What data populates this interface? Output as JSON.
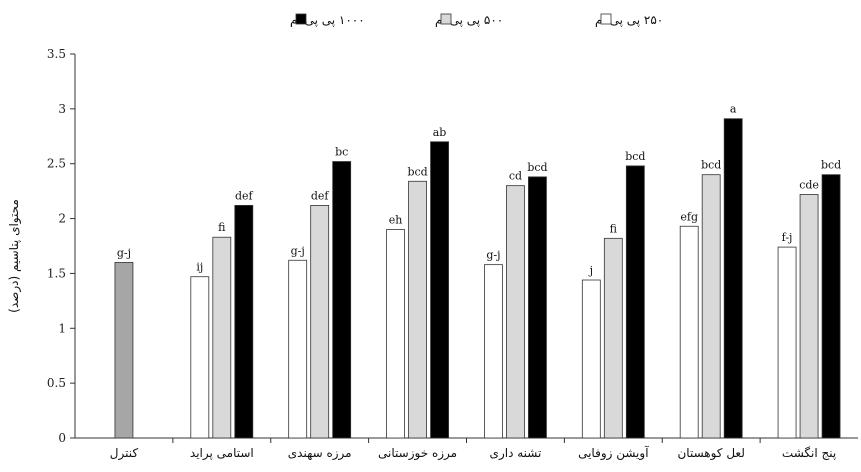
{
  "chart_data": {
    "type": "bar",
    "ylabel": "محتوای پتاسیم (درصد)",
    "ylim": [
      0,
      3.5
    ],
    "yticks": [
      "0",
      "0.5",
      "1",
      "1.5",
      "2",
      "2.5",
      "3",
      "3.5"
    ],
    "categories": [
      "کنترل",
      "استامی پراید",
      "مرزه سهندی",
      "مرزه خوزستانی",
      "تشنه داری",
      "آویشن زوفایی",
      "لعل کوهستان",
      "پنج انگشت"
    ],
    "control": {
      "value": 1.6,
      "label": "g-j",
      "color": "#a6a6a6"
    },
    "series": [
      {
        "name": "۲۵۰ پی پی ام",
        "color": "#ffffff",
        "values": [
          null,
          1.47,
          1.62,
          1.9,
          1.58,
          1.44,
          1.93,
          1.74
        ],
        "labels": [
          "",
          "ij",
          "g-j",
          "eh",
          "g-j",
          "j",
          "efg",
          "f-j"
        ]
      },
      {
        "name": "۵۰۰ پی پی ام",
        "color": "#d9d9d9",
        "values": [
          null,
          1.83,
          2.12,
          2.34,
          2.3,
          1.82,
          2.4,
          2.22
        ],
        "labels": [
          "",
          "fi",
          "def",
          "bcd",
          "cd",
          "fi",
          "bcd",
          "cde"
        ]
      },
      {
        "name": "۱۰۰۰ پی پی ام",
        "color": "#000000",
        "values": [
          null,
          2.12,
          2.52,
          2.7,
          2.38,
          2.48,
          2.91,
          2.4
        ],
        "labels": [
          "",
          "def",
          "bc",
          "ab",
          "bcd",
          "bcd",
          "a",
          "bcd"
        ]
      }
    ],
    "grid": false,
    "legend": "top"
  }
}
